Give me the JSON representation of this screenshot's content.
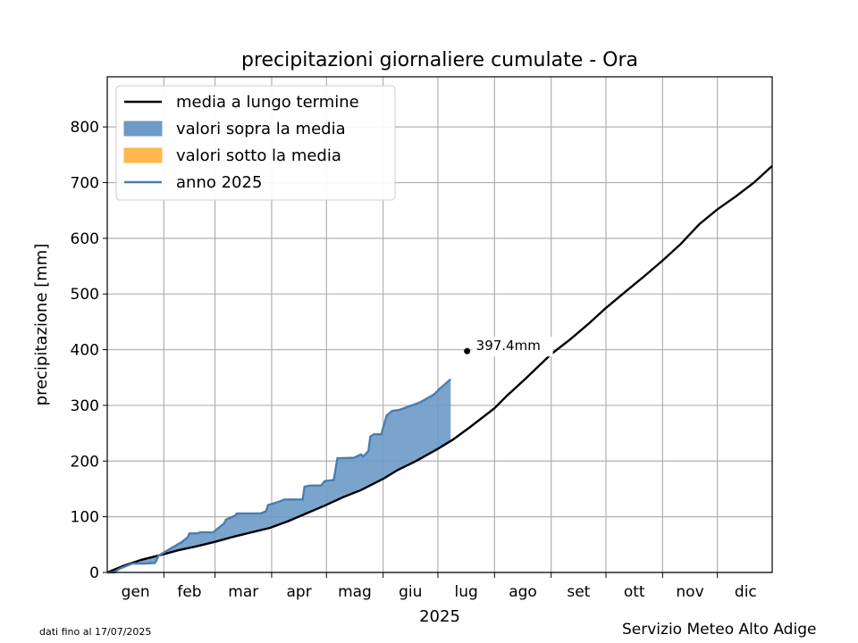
{
  "chart_data": {
    "type": "area",
    "title": "precipitazioni giornaliere cumulate - Ora",
    "xlabel": "2025",
    "ylabel": "precipitazione [mm]",
    "x_unit": "day of year 2025",
    "xlim": [
      1,
      365
    ],
    "ylim": [
      0,
      890
    ],
    "yticks": [
      0,
      100,
      200,
      300,
      400,
      500,
      600,
      700,
      800
    ],
    "month_labels": [
      "gen",
      "feb",
      "mar",
      "apr",
      "mag",
      "giu",
      "lug",
      "ago",
      "set",
      "ott",
      "nov",
      "dic"
    ],
    "month_starts": [
      1,
      32,
      60,
      91,
      121,
      152,
      182,
      213,
      244,
      274,
      305,
      335
    ],
    "grid": true,
    "legend_position": "top-left",
    "series": [
      {
        "name": "media a lungo termine",
        "color": "#000000",
        "x": [
          1,
          10,
          20,
          31,
          40,
          50,
          60,
          70,
          80,
          90,
          100,
          110,
          120,
          130,
          140,
          152,
          160,
          170,
          182,
          190,
          200,
          213,
          220,
          230,
          244,
          255,
          265,
          274,
          285,
          295,
          305,
          315,
          325,
          335,
          345,
          355,
          365
        ],
        "y": [
          0,
          12,
          23,
          32,
          40,
          47,
          55,
          64,
          72,
          80,
          92,
          106,
          120,
          135,
          148,
          168,
          184,
          200,
          222,
          238,
          262,
          295,
          318,
          348,
          392,
          420,
          448,
          475,
          505,
          532,
          560,
          590,
          625,
          652,
          675,
          700,
          730
        ]
      },
      {
        "name": "anno 2025",
        "color": "#4a7eb0",
        "x": [
          1,
          5,
          6,
          8,
          14,
          15,
          21,
          27,
          28,
          29,
          42,
          45,
          46,
          50,
          52,
          59,
          60,
          65,
          66,
          71,
          72,
          85,
          88,
          89,
          95,
          98,
          108,
          109,
          112,
          118,
          120,
          125,
          127,
          136,
          140,
          141,
          144,
          145,
          147,
          151,
          154,
          157,
          161,
          172,
          179,
          180,
          183,
          189
        ],
        "y": [
          0,
          0,
          3,
          7,
          15,
          16,
          16,
          17,
          22,
          30,
          55,
          63,
          70,
          70,
          72,
          72,
          75,
          88,
          95,
          102,
          106,
          106,
          110,
          121,
          127,
          131,
          131,
          154,
          156,
          156,
          164,
          166,
          205,
          206,
          212,
          208,
          218,
          244,
          248,
          248,
          282,
          290,
          292,
          305,
          318,
          320,
          330,
          347
        ]
      }
    ],
    "legend": [
      {
        "label": "media a lungo termine",
        "kind": "line",
        "color": "#000000"
      },
      {
        "label": "valori sopra la media",
        "kind": "patch",
        "color": "#6d9ac6"
      },
      {
        "label": "valori sotto la media",
        "kind": "patch",
        "color": "#ffb84d"
      },
      {
        "label": "anno 2025",
        "kind": "line",
        "color": "#4a7eb0"
      }
    ],
    "annotation": {
      "x": 198,
      "y": 397.4,
      "text": "397.4mm"
    }
  },
  "footer": {
    "data_note": "dati fino al 17/07/2025",
    "source": "Servizio Meteo Alto Adige"
  }
}
